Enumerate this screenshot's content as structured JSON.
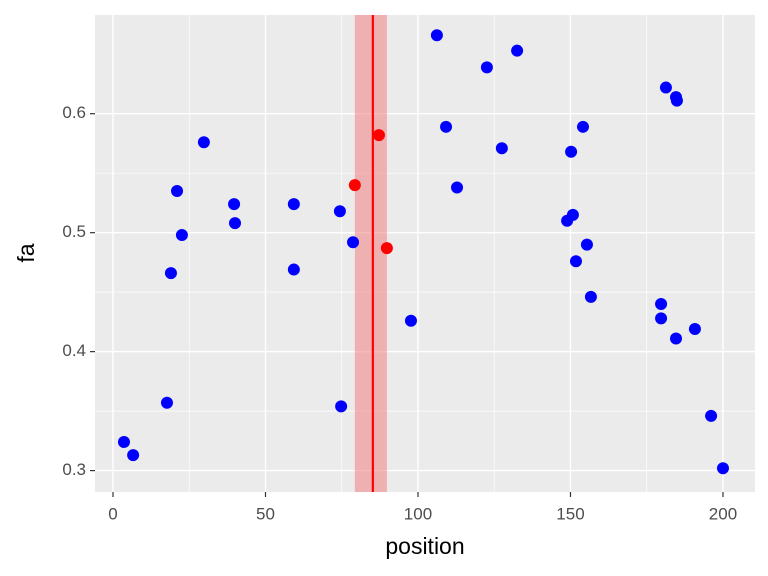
{
  "chart_data": {
    "type": "scatter",
    "x_label": "position",
    "y_label": "fa",
    "xlim": [
      -5.9,
      210.5
    ],
    "ylim": [
      0.282,
      0.683
    ],
    "xticks": [
      0,
      50,
      100,
      150,
      200
    ],
    "yticks": [
      0.3,
      0.4,
      0.5,
      0.6
    ],
    "grid": true,
    "minor_grid": true,
    "band": {
      "range": [
        79.3,
        89.8
      ],
      "color": "#f08080"
    },
    "vline": {
      "value": 85.2,
      "color": "red"
    },
    "series": [
      {
        "color": "blue",
        "x": [
          3.6,
          6.6,
          17.7,
          19.0,
          21.0,
          22.6,
          29.8,
          39.7,
          40.0,
          59.3,
          59.3,
          74.4,
          74.8,
          78.7,
          97.7,
          106.2,
          109.2,
          112.8,
          122.6,
          127.5,
          132.5,
          148.9,
          150.2,
          150.8,
          151.8,
          154.1,
          155.4,
          156.7,
          179.7,
          179.7,
          181.3,
          184.6,
          184.6,
          184.9,
          190.8,
          196.1,
          200.0
        ],
        "values": [
          0.324,
          0.313,
          0.357,
          0.466,
          0.535,
          0.498,
          0.576,
          0.524,
          0.508,
          0.524,
          0.469,
          0.518,
          0.354,
          0.492,
          0.426,
          0.666,
          0.589,
          0.538,
          0.639,
          0.571,
          0.653,
          0.51,
          0.568,
          0.515,
          0.476,
          0.589,
          0.49,
          0.446,
          0.44,
          0.428,
          0.622,
          0.411,
          0.614,
          0.611,
          0.419,
          0.346,
          0.302
        ]
      },
      {
        "color": "red",
        "x": [
          79.3,
          87.2,
          89.8
        ],
        "values": [
          0.54,
          0.582,
          0.487
        ]
      }
    ]
  }
}
